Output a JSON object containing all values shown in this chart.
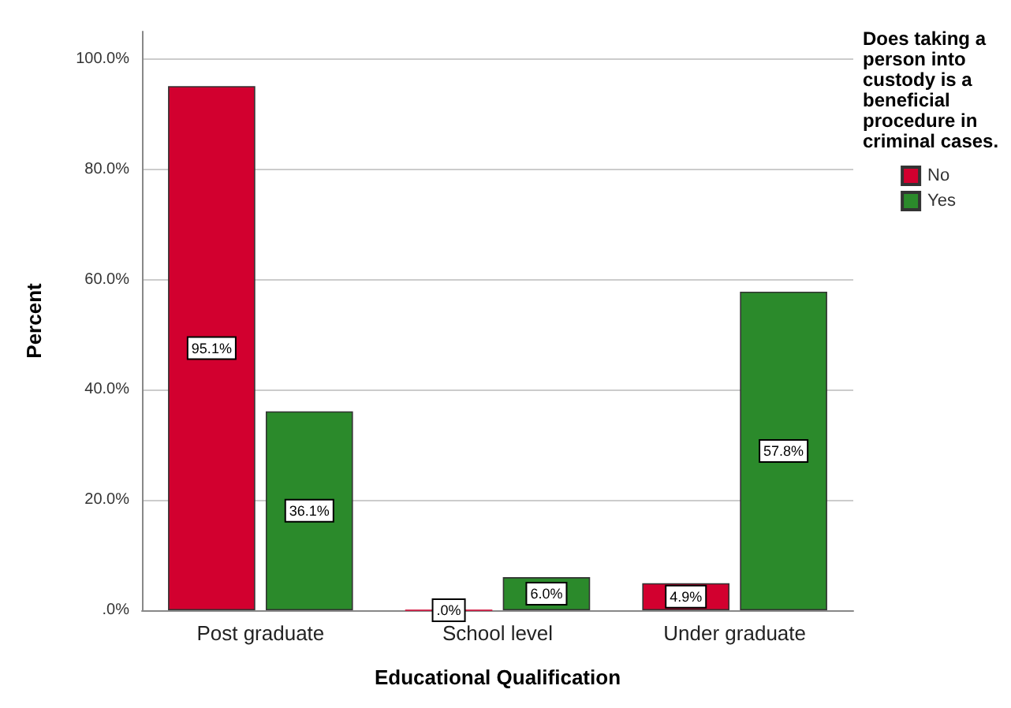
{
  "chart_data": {
    "type": "bar",
    "xlabel": "Educational Qualification",
    "ylabel": "Percent",
    "legend_title": "Does taking a person into custody is a beneficial procedure in criminal cases.",
    "categories": [
      "Post graduate",
      "School level",
      "Under graduate"
    ],
    "series": [
      {
        "name": "No",
        "color": "#d2002f",
        "values": [
          95.1,
          0,
          4.9
        ],
        "value_labels": [
          "95.1%",
          ".0%",
          "4.9%"
        ]
      },
      {
        "name": "Yes",
        "color": "#2b8a2b",
        "values": [
          36.1,
          6.0,
          57.8
        ],
        "value_labels": [
          "36.1%",
          "6.0%",
          "57.8%"
        ]
      }
    ],
    "ylim": [
      0,
      105
    ],
    "yticks": [
      {
        "value": 0,
        "label": ".0%"
      },
      {
        "value": 20,
        "label": "20.0%"
      },
      {
        "value": 40,
        "label": "40.0%"
      },
      {
        "value": 60,
        "label": "60.0%"
      },
      {
        "value": 80,
        "label": "80.0%"
      },
      {
        "value": 100,
        "label": "100.0%"
      }
    ],
    "grid": "y",
    "legend": "right"
  }
}
